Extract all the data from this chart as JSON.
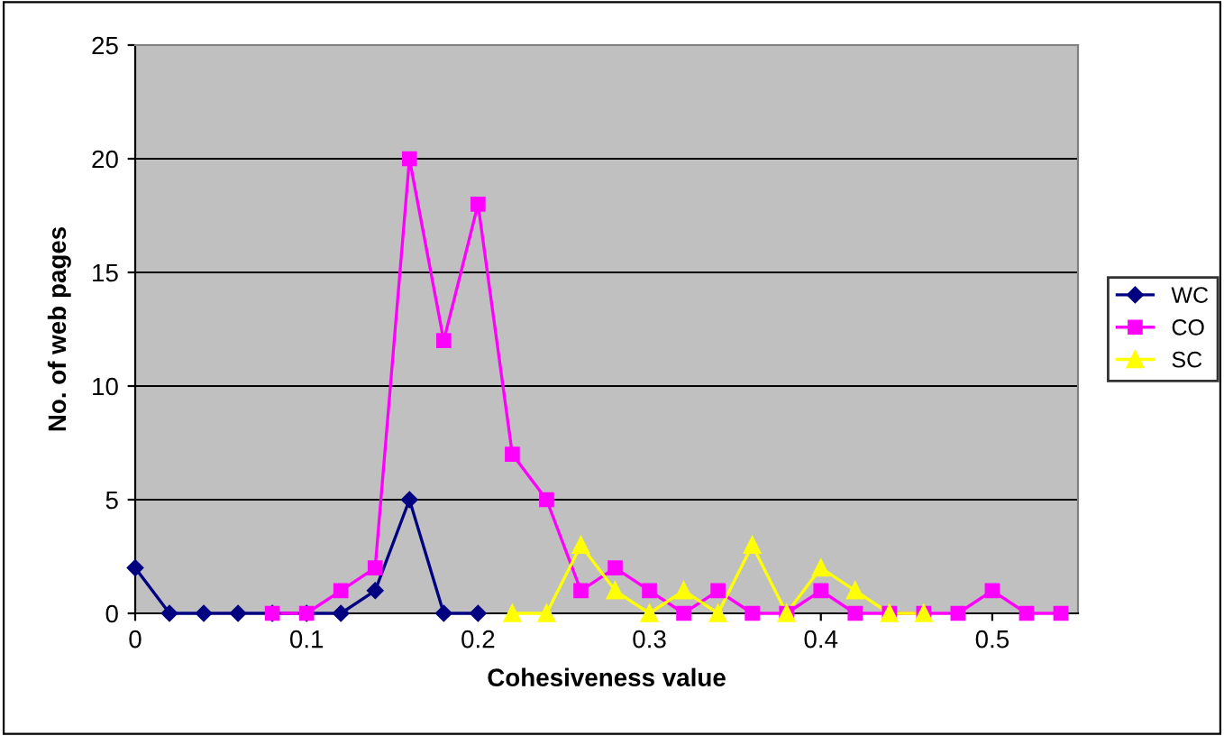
{
  "chart_data": {
    "type": "line",
    "xlabel": "Cohesiveness value",
    "ylabel": "No. of web pages",
    "xlim": [
      0,
      0.55
    ],
    "xticks": [
      0,
      0.1,
      0.2,
      0.3,
      0.4,
      0.5
    ],
    "ylim": [
      0,
      25
    ],
    "yticks": [
      0,
      5,
      10,
      15,
      20,
      25
    ],
    "grid": "y",
    "legend": "right",
    "series": [
      {
        "name": "WC",
        "color": "#000080",
        "marker": "diamond",
        "x": [
          0,
          0.02,
          0.04,
          0.06,
          0.08,
          0.1,
          0.12,
          0.14,
          0.16,
          0.18,
          0.2
        ],
        "values": [
          2,
          0,
          0,
          0,
          0,
          0,
          0,
          1,
          5,
          0,
          0
        ]
      },
      {
        "name": "CO",
        "color": "#ff00ff",
        "marker": "square",
        "x": [
          0.08,
          0.1,
          0.12,
          0.14,
          0.16,
          0.18,
          0.2,
          0.22,
          0.24,
          0.26,
          0.28,
          0.3,
          0.32,
          0.34,
          0.36,
          0.38,
          0.4,
          0.42,
          0.44,
          0.46,
          0.48,
          0.5,
          0.52,
          0.54
        ],
        "values": [
          0,
          0,
          1,
          2,
          20,
          12,
          18,
          7,
          5,
          1,
          2,
          1,
          0,
          1,
          0,
          0,
          1,
          0,
          0,
          0,
          0,
          1,
          0,
          0
        ]
      },
      {
        "name": "SC",
        "color": "#ffff00",
        "marker": "triangle",
        "x": [
          0.22,
          0.24,
          0.26,
          0.28,
          0.3,
          0.32,
          0.34,
          0.36,
          0.38,
          0.4,
          0.42,
          0.44,
          0.46
        ],
        "values": [
          0,
          0,
          3,
          1,
          0,
          1,
          0,
          3,
          0,
          2,
          1,
          0,
          0
        ]
      }
    ]
  }
}
